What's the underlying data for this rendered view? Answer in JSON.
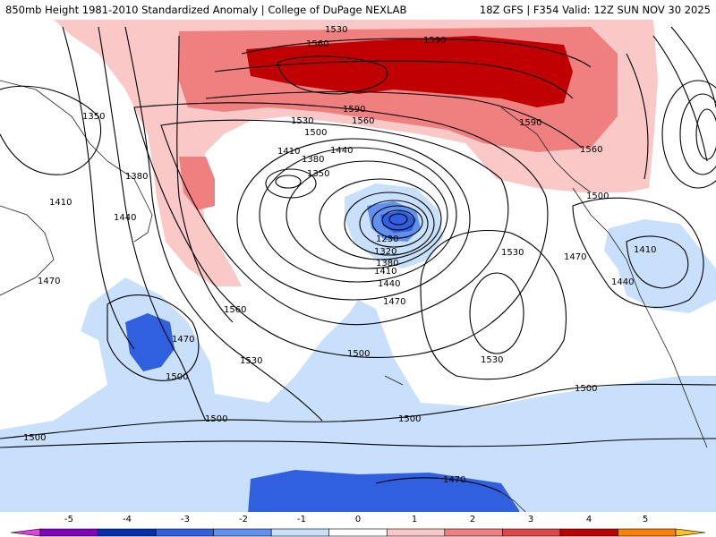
{
  "header": {
    "title_left": "850mb Height 1981-2010 Standardized Anomaly | College of DuPage NEXLAB",
    "title_right": "18Z GFS | F354 Valid: 12Z SUN NOV 30 2025"
  },
  "contour_labels": [
    "1530",
    "1560",
    "1590",
    "1350",
    "1380",
    "1410",
    "1440",
    "1470",
    "1500",
    "1530",
    "1590",
    "1560",
    "1590",
    "1560",
    "1500",
    "1410",
    "1440",
    "1350",
    "1380",
    "1230",
    "1320",
    "1380",
    "1410",
    "1440",
    "1470",
    "1530",
    "1470",
    "1410",
    "1440",
    "1560",
    "1470",
    "1500",
    "1530",
    "1500",
    "1530",
    "1500",
    "1500",
    "1500",
    "1500",
    "1470"
  ],
  "colorbar": {
    "labels": [
      "-5",
      "-4",
      "-3",
      "-2",
      "-1",
      "0",
      "1",
      "2",
      "3",
      "4",
      "5"
    ],
    "colors": [
      "#e040e0",
      "#8000c0",
      "#0030b0",
      "#3060e0",
      "#6090f0",
      "#c8e0fb",
      "#ffffff",
      "#fbc8c8",
      "#f08080",
      "#e04848",
      "#c00000",
      "#ff8000",
      "#ffc020"
    ]
  }
}
